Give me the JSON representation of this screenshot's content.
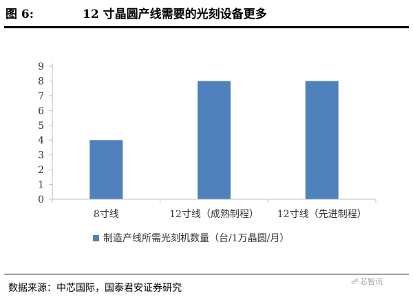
{
  "header": {
    "figure_label": "图 6:",
    "title": "12 寸晶圆产线需要的光刻设备更多"
  },
  "footer": {
    "source": "数据来源：中芯国际，国泰君安证券研究",
    "watermark": "芯智讯"
  },
  "chart_data": {
    "type": "bar",
    "title": "",
    "xlabel": "",
    "ylabel": "",
    "categories": [
      "8寸线",
      "12寸线（成熟制程）",
      "12寸线（先进制程）"
    ],
    "series": [
      {
        "name": "制造产线所需光刻机数量（台/1万晶圆/月）",
        "values": [
          4,
          8,
          8
        ]
      }
    ],
    "ylim": [
      0,
      9
    ],
    "yticks": [
      "0",
      "1",
      "2",
      "3",
      "4",
      "5",
      "6",
      "7",
      "8",
      "9"
    ],
    "grid": false,
    "legend": "bottom",
    "colors": {
      "bar": "#4f81bd",
      "axis": "#bfbfbf"
    }
  }
}
